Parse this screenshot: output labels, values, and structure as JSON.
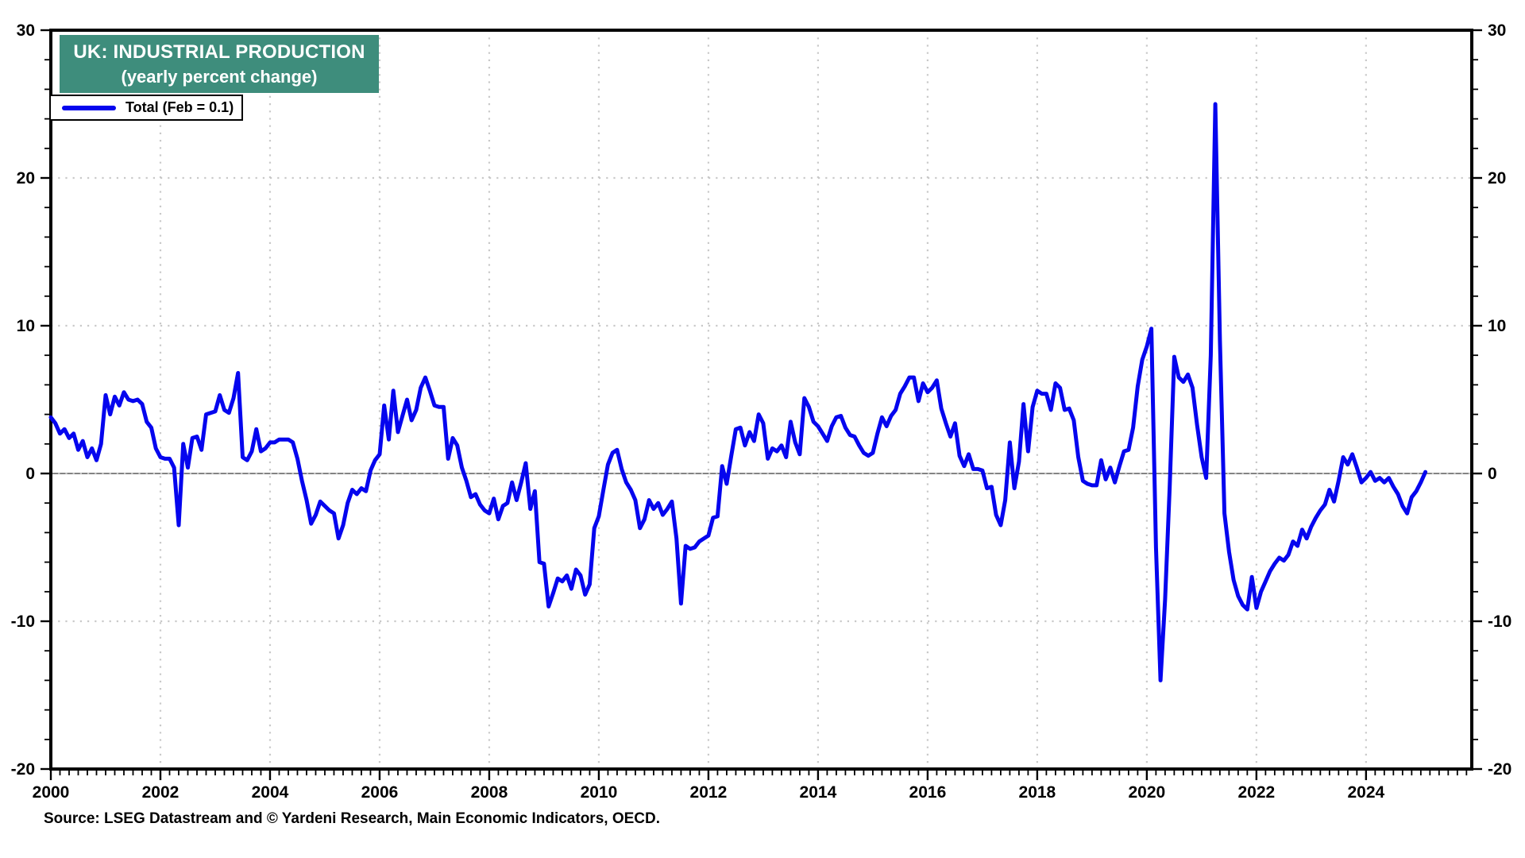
{
  "title": {
    "line1": "UK: INDUSTRIAL PRODUCTION",
    "line2": "(yearly percent change)"
  },
  "legend": {
    "label": "Total (Feb = 0.1)"
  },
  "source": "Source: LSEG Datastream and © Yardeni Research, Main Economic Indicators, OECD.",
  "colors": {
    "line": "#0505ee",
    "title_bg": "#3e8d7c",
    "grid": "#c9c9c9",
    "zero_line": "#5a5a5a",
    "frame": "#000000"
  },
  "chart_data": {
    "type": "line",
    "title": "UK: INDUSTRIAL PRODUCTION",
    "subtitle": "(yearly percent change)",
    "ylabel": "yearly percent change",
    "ylim": [
      -20,
      30
    ],
    "y_ticks": [
      30,
      20,
      10,
      0,
      -10,
      -20
    ],
    "y_minor_step": 2,
    "x_ticks": [
      2000,
      2002,
      2004,
      2006,
      2008,
      2010,
      2012,
      2014,
      2016,
      2018,
      2020,
      2022,
      2024
    ],
    "x_range": [
      2000,
      2025.93
    ],
    "grid": "dotted gray horizontals at 20/10/0/-10, dotted verticals at even years, solid gray line at 0",
    "legend_position": "top-left",
    "series": [
      {
        "name": "Total (Feb = 0.1)",
        "frequency": "monthly",
        "start_year": 2000,
        "start_month": 1,
        "last_point_label": "Feb = 0.1",
        "values": [
          3.8,
          3.4,
          2.7,
          3.0,
          2.4,
          2.7,
          1.6,
          2.2,
          1.1,
          1.7,
          0.9,
          2.0,
          5.3,
          4.0,
          5.2,
          4.6,
          5.5,
          5.0,
          4.9,
          5.0,
          4.7,
          3.5,
          3.1,
          1.7,
          1.1,
          1.0,
          1.0,
          0.4,
          -3.5,
          2.0,
          0.4,
          2.4,
          2.5,
          1.6,
          4.0,
          4.1,
          4.2,
          5.3,
          4.3,
          4.1,
          5.1,
          6.8,
          1.1,
          0.9,
          1.5,
          3.0,
          1.5,
          1.7,
          2.1,
          2.1,
          2.3,
          2.3,
          2.3,
          2.1,
          1.0,
          -0.5,
          -1.8,
          -3.4,
          -2.8,
          -1.9,
          -2.2,
          -2.5,
          -2.7,
          -4.4,
          -3.5,
          -2.0,
          -1.1,
          -1.4,
          -1.0,
          -1.2,
          0.2,
          0.9,
          1.3,
          4.6,
          2.3,
          5.6,
          2.8,
          3.9,
          5.0,
          3.6,
          4.3,
          5.8,
          6.5,
          5.6,
          4.6,
          4.5,
          4.5,
          1.0,
          2.4,
          1.9,
          0.4,
          -0.5,
          -1.6,
          -1.4,
          -2.1,
          -2.5,
          -2.7,
          -1.7,
          -3.1,
          -2.2,
          -2.0,
          -0.6,
          -1.8,
          -0.6,
          0.7,
          -2.4,
          -1.2,
          -6.0,
          -6.1,
          -9.0,
          -8.1,
          -7.1,
          -7.3,
          -6.9,
          -7.8,
          -6.5,
          -6.9,
          -8.2,
          -7.5,
          -3.7,
          -2.9,
          -1.1,
          0.6,
          1.4,
          1.6,
          0.3,
          -0.6,
          -1.1,
          -1.8,
          -3.7,
          -3.1,
          -1.8,
          -2.4,
          -2.0,
          -2.8,
          -2.4,
          -1.9,
          -4.4,
          -8.8,
          -4.9,
          -5.1,
          -5.0,
          -4.6,
          -4.4,
          -4.2,
          -3.0,
          -2.9,
          0.5,
          -0.7,
          1.2,
          3.0,
          3.1,
          1.9,
          2.8,
          2.2,
          4.0,
          3.4,
          1.0,
          1.7,
          1.5,
          1.9,
          1.1,
          3.5,
          2.1,
          1.3,
          5.1,
          4.5,
          3.5,
          3.2,
          2.7,
          2.2,
          3.2,
          3.8,
          3.9,
          3.1,
          2.6,
          2.5,
          1.9,
          1.4,
          1.2,
          1.4,
          2.7,
          3.8,
          3.2,
          3.9,
          4.3,
          5.4,
          5.9,
          6.5,
          6.5,
          4.9,
          6.1,
          5.5,
          5.8,
          6.3,
          4.4,
          3.4,
          2.5,
          3.4,
          1.2,
          0.5,
          1.3,
          0.3,
          0.3,
          0.2,
          -1.0,
          -0.9,
          -2.8,
          -3.5,
          -1.8,
          2.1,
          -1.0,
          0.8,
          4.7,
          1.5,
          4.5,
          5.6,
          5.4,
          5.4,
          4.3,
          6.1,
          5.8,
          4.3,
          4.4,
          3.6,
          1.1,
          -0.5,
          -0.7,
          -0.8,
          -0.8,
          0.9,
          -0.4,
          0.4,
          -0.6,
          0.5,
          1.5,
          1.6,
          3.1,
          5.9,
          7.7,
          8.6,
          9.8,
          -5.0,
          -14.0,
          -8.5,
          -1.0,
          7.9,
          6.5,
          6.2,
          6.7,
          5.8,
          3.3,
          1.1,
          -0.3,
          8.0,
          25.0,
          9.0,
          -2.7,
          -5.3,
          -7.2,
          -8.3,
          -8.9,
          -9.2,
          -7.0,
          -9.1,
          -8.0,
          -7.3,
          -6.6,
          -6.1,
          -5.7,
          -5.9,
          -5.5,
          -4.6,
          -4.9,
          -3.8,
          -4.4,
          -3.6,
          -3.0,
          -2.5,
          -2.1,
          -1.1,
          -1.9,
          -0.5,
          1.1,
          0.6,
          1.3,
          0.4,
          -0.6,
          -0.3,
          0.1,
          -0.5,
          -0.3,
          -0.6,
          -0.3,
          -0.9,
          -1.4,
          -2.2,
          -2.7,
          -1.6,
          -1.2,
          -0.6,
          0.1
        ]
      }
    ]
  }
}
